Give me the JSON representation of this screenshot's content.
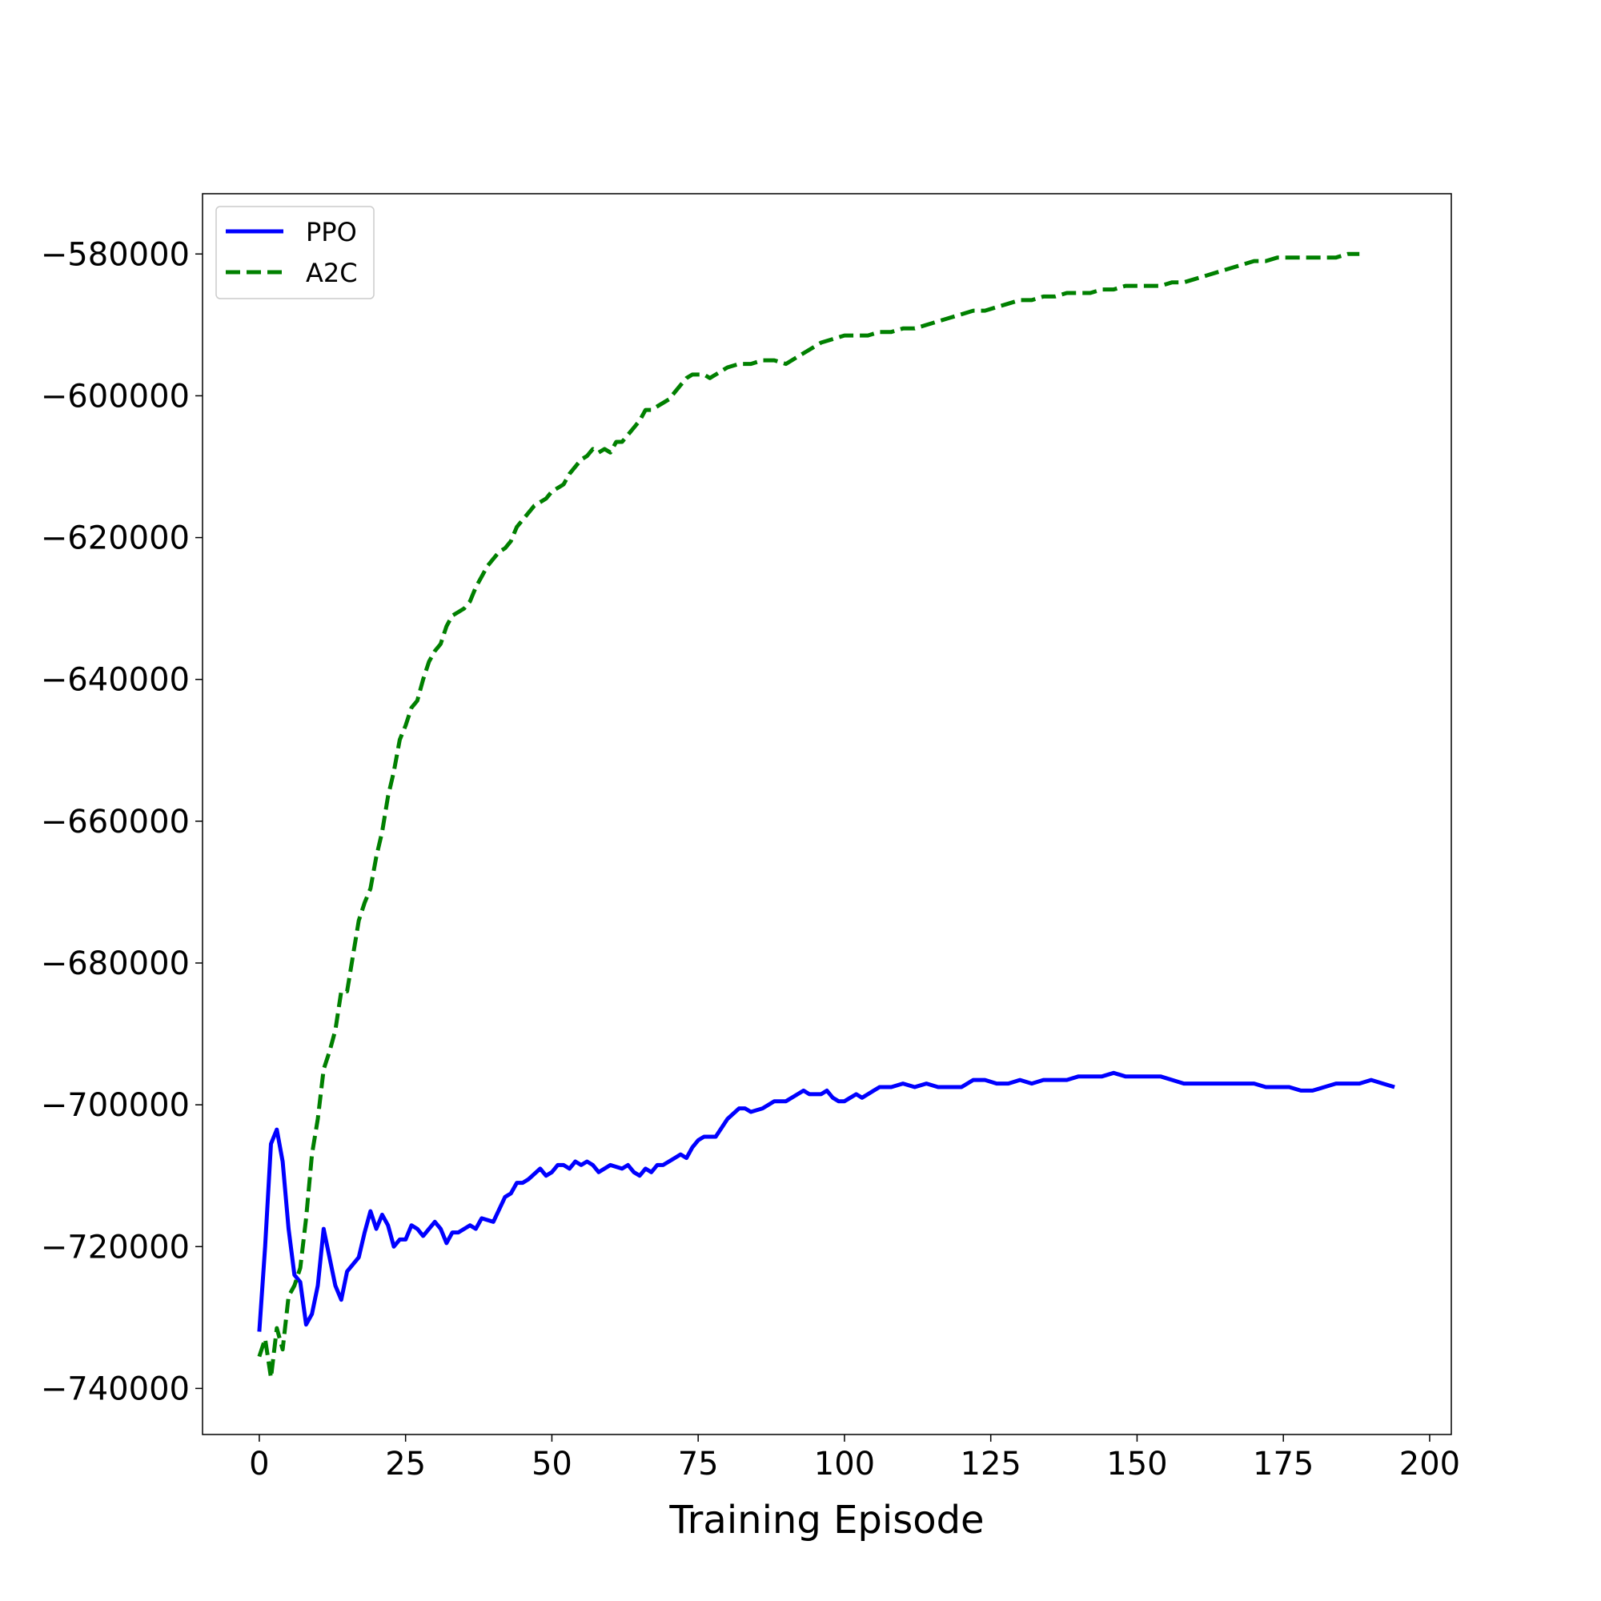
{
  "chart_data": {
    "type": "line",
    "title": "",
    "xlabel": "Training Episode",
    "ylabel": "",
    "xlim": [
      -9.7,
      203.7
    ],
    "ylim": [
      -746500,
      -571500
    ],
    "xticks": [
      0,
      25,
      50,
      75,
      100,
      125,
      150,
      175,
      200
    ],
    "yticks": [
      -740000,
      -720000,
      -700000,
      -680000,
      -660000,
      -640000,
      -620000,
      -600000,
      -580000
    ],
    "xtick_labels": [
      "0",
      "25",
      "50",
      "75",
      "100",
      "125",
      "150",
      "175",
      "200"
    ],
    "ytick_labels": [
      "−740000",
      "−720000",
      "−700000",
      "−680000",
      "−660000",
      "−640000",
      "−620000",
      "−600000",
      "−580000"
    ],
    "grid": false,
    "legend": {
      "position": "top-left"
    },
    "series": [
      {
        "name": "PPO",
        "color": "#0000ff",
        "style": "solid",
        "x": [
          0,
          1,
          2,
          3,
          4,
          5,
          6,
          7,
          8,
          9,
          10,
          11,
          12,
          13,
          14,
          15,
          17,
          18,
          19,
          20,
          21,
          22,
          23,
          24,
          25,
          26,
          27,
          28,
          30,
          31,
          32,
          33,
          34,
          36,
          37,
          38,
          40,
          42,
          43,
          44,
          45,
          46,
          48,
          49,
          50,
          51,
          52,
          53,
          54,
          55,
          56,
          57,
          58,
          60,
          62,
          63,
          64,
          65,
          66,
          67,
          68,
          69,
          70,
          71,
          72,
          73,
          74,
          75,
          76,
          77,
          78,
          80,
          82,
          83,
          84,
          86,
          88,
          90,
          92,
          93,
          94,
          96,
          97,
          98,
          99,
          100,
          101,
          102,
          103,
          104,
          105,
          106,
          108,
          110,
          112,
          114,
          116,
          118,
          120,
          122,
          124,
          126,
          128,
          130,
          132,
          134,
          136,
          138,
          140,
          142,
          144,
          146,
          148,
          150,
          152,
          154,
          156,
          158,
          160,
          162,
          164,
          166,
          168,
          170,
          172,
          174,
          176,
          178,
          180,
          182,
          184,
          186,
          188,
          190,
          192,
          194
        ],
        "values": [
          -732000,
          -720000,
          -705500,
          -703500,
          -708000,
          -717500,
          -724000,
          -725000,
          -731000,
          -729500,
          -725500,
          -717500,
          -721500,
          -725500,
          -727500,
          -723500,
          -721500,
          -718000,
          -715000,
          -717500,
          -715500,
          -717000,
          -720000,
          -719000,
          -719000,
          -717000,
          -717500,
          -718500,
          -716500,
          -717500,
          -719500,
          -718000,
          -718000,
          -717000,
          -717500,
          -716000,
          -716500,
          -713000,
          -712500,
          -711000,
          -711000,
          -710500,
          -709000,
          -710000,
          -709500,
          -708500,
          -708500,
          -709000,
          -708000,
          -708500,
          -708000,
          -708500,
          -709500,
          -708500,
          -709000,
          -708500,
          -709500,
          -710000,
          -709000,
          -709500,
          -708500,
          -708500,
          -708000,
          -707500,
          -707000,
          -707500,
          -706000,
          -705000,
          -704500,
          -704500,
          -704500,
          -702000,
          -700500,
          -700500,
          -701000,
          -700500,
          -699500,
          -699500,
          -698500,
          -698000,
          -698500,
          -698500,
          -698000,
          -699000,
          -699500,
          -699500,
          -699000,
          -698500,
          -699000,
          -698500,
          -698000,
          -697500,
          -697500,
          -697000,
          -697500,
          -697000,
          -697500,
          -697500,
          -697500,
          -696500,
          -696500,
          -697000,
          -697000,
          -696500,
          -697000,
          -696500,
          -696500,
          -696500,
          -696000,
          -696000,
          -696000,
          -695500,
          -696000,
          -696000,
          -696000,
          -696000,
          -696500,
          -697000,
          -697000,
          -697000,
          -697000,
          -697000,
          -697000,
          -697000,
          -697500,
          -697500,
          -697500,
          -698000,
          -698000,
          -697500,
          -697000,
          -697000,
          -697000,
          -696500,
          -697000,
          -697500
        ]
      },
      {
        "name": "A2C",
        "color": "#008000",
        "style": "dashed",
        "x": [
          0,
          1,
          2,
          3,
          4,
          5,
          6,
          7,
          8,
          9,
          10,
          11,
          12,
          13,
          14,
          15,
          16,
          17,
          18,
          19,
          20,
          21,
          22,
          23,
          24,
          25,
          26,
          27,
          28,
          29,
          30,
          31,
          32,
          33,
          34,
          35,
          36,
          37,
          38,
          39,
          40,
          41,
          42,
          43,
          44,
          45,
          46,
          47,
          48,
          49,
          50,
          51,
          52,
          53,
          54,
          55,
          56,
          57,
          58,
          59,
          60,
          61,
          62,
          63,
          64,
          65,
          66,
          67,
          68,
          69,
          70,
          71,
          72,
          73,
          74,
          75,
          76,
          77,
          78,
          80,
          82,
          84,
          86,
          88,
          90,
          92,
          94,
          96,
          98,
          100,
          102,
          104,
          106,
          108,
          110,
          112,
          114,
          116,
          118,
          120,
          122,
          124,
          126,
          128,
          130,
          132,
          134,
          136,
          138,
          140,
          142,
          144,
          146,
          148,
          150,
          152,
          154,
          156,
          158,
          160,
          162,
          164,
          166,
          168,
          170,
          172,
          174,
          176,
          178,
          180,
          182,
          184,
          186,
          188
        ],
        "values": [
          -735500,
          -733000,
          -738500,
          -731500,
          -734500,
          -727000,
          -725500,
          -723000,
          -716000,
          -707000,
          -702000,
          -695000,
          -692500,
          -689500,
          -684000,
          -684000,
          -679000,
          -674000,
          -671500,
          -669500,
          -665000,
          -661500,
          -656500,
          -653000,
          -648500,
          -646500,
          -644000,
          -643000,
          -640000,
          -637500,
          -636000,
          -635000,
          -632500,
          -631000,
          -630500,
          -630000,
          -629000,
          -627000,
          -625500,
          -624000,
          -623000,
          -622000,
          -621500,
          -620500,
          -618500,
          -617500,
          -616500,
          -615500,
          -615000,
          -614500,
          -613500,
          -613000,
          -612500,
          -611000,
          -610000,
          -609000,
          -608500,
          -607500,
          -608000,
          -607500,
          -608000,
          -606500,
          -606500,
          -605500,
          -604500,
          -603500,
          -602000,
          -602000,
          -601500,
          -601000,
          -600500,
          -599500,
          -598500,
          -597500,
          -597000,
          -597000,
          -597000,
          -597500,
          -597000,
          -596000,
          -595500,
          -595500,
          -595000,
          -595000,
          -595500,
          -594500,
          -593500,
          -592500,
          -592000,
          -591500,
          -591500,
          -591500,
          -591000,
          -591000,
          -590500,
          -590500,
          -590000,
          -589500,
          -589000,
          -588500,
          -588000,
          -588000,
          -587500,
          -587000,
          -586500,
          -586500,
          -586000,
          -586000,
          -585500,
          -585500,
          -585500,
          -585000,
          -585000,
          -584500,
          -584500,
          -584500,
          -584500,
          -584000,
          -584000,
          -583500,
          -583000,
          -582500,
          -582000,
          -581500,
          -581000,
          -581000,
          -580500,
          -580500,
          -580500,
          -580500,
          -580500,
          -580500,
          -580000,
          -580000
        ]
      }
    ]
  }
}
